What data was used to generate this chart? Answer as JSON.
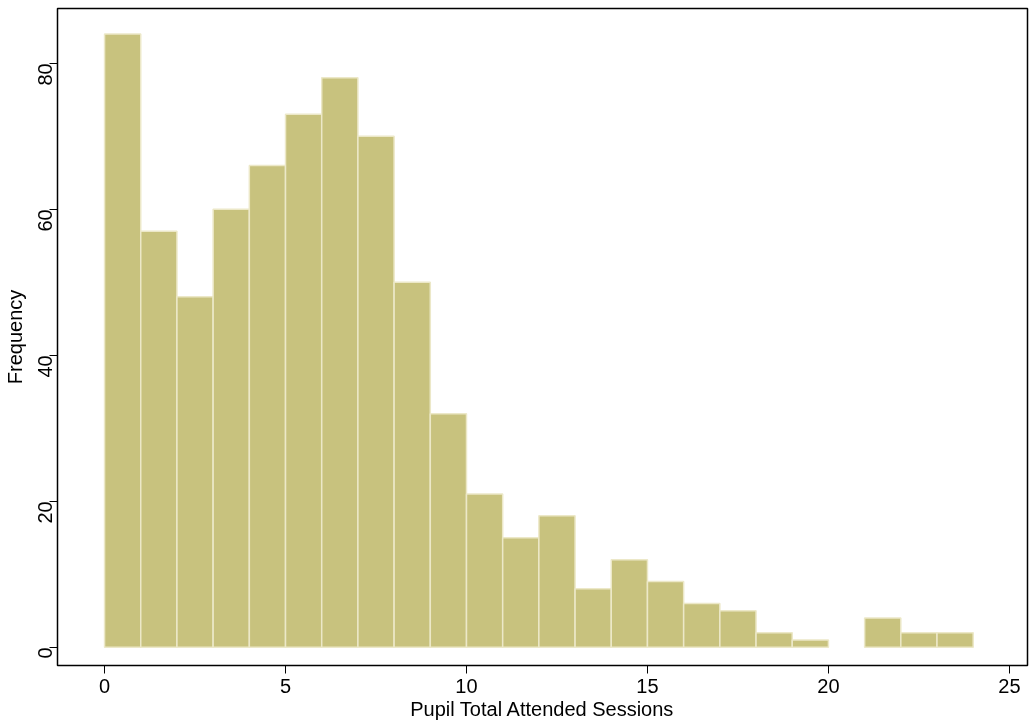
{
  "chart_data": {
    "type": "histogram",
    "xlabel": "Pupil Total Attended Sessions",
    "ylabel": "Frequency",
    "bins": [
      0,
      1,
      2,
      3,
      4,
      5,
      6,
      7,
      8,
      9,
      10,
      11,
      12,
      13,
      14,
      15,
      16,
      17,
      18,
      19,
      20,
      21,
      22,
      23,
      24
    ],
    "values": [
      84,
      57,
      48,
      60,
      66,
      73,
      78,
      70,
      50,
      32,
      21,
      15,
      18,
      8,
      12,
      9,
      6,
      5,
      2,
      1,
      0,
      4,
      2,
      2
    ],
    "color": "#c8c27e",
    "xlim": [
      -1.3,
      25.5
    ],
    "ylim": [
      -2.5,
      87.5
    ],
    "xticks": [
      0,
      5,
      10,
      15,
      20,
      25
    ],
    "yticks": [
      0,
      20,
      40,
      60,
      80
    ],
    "grid": false
  }
}
